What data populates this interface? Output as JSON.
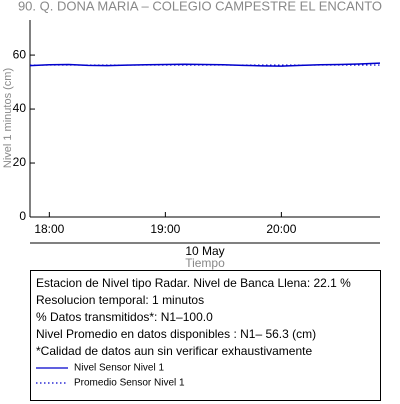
{
  "chart_data": {
    "type": "line",
    "title": "90. Q. DONA MARIA – COLEGIO CAMPESTRE EL ENCANTO",
    "ylabel": "Nivel 1 minutos (cm)",
    "date": "10 May",
    "xlabel": "Tiempo",
    "xlim": [
      1070,
      1251
    ],
    "xticks": [
      {
        "value": 1080,
        "label": "18:00"
      },
      {
        "value": 1140,
        "label": "19:00"
      },
      {
        "value": 1200,
        "label": "20:00"
      }
    ],
    "ylim": [
      0,
      73
    ],
    "yticks": [
      0,
      20,
      40,
      60
    ],
    "series": [
      {
        "name": "Nivel Sensor Nivel 1",
        "color": "#0000cc",
        "style": "solid",
        "x": [
          1070,
          1080,
          1090,
          1100,
          1110,
          1120,
          1130,
          1140,
          1150,
          1160,
          1170,
          1180,
          1190,
          1200,
          1210,
          1220,
          1230,
          1240,
          1251
        ],
        "values": [
          56.1,
          56.4,
          56.5,
          56.2,
          56.1,
          56.3,
          56.4,
          56.5,
          56.6,
          56.5,
          56.4,
          56.2,
          56.0,
          55.9,
          56.2,
          56.4,
          56.5,
          56.7,
          57.0
        ]
      },
      {
        "name": "Promedio Sensor Nivel 1",
        "color": "#0000cc",
        "style": "dotted",
        "x": [
          1070,
          1251
        ],
        "values": [
          56.3,
          56.3
        ]
      }
    ],
    "info_box": {
      "lines": [
        "Estacion de Nivel tipo Radar. Nivel de Banca Llena: 22.1 %",
        "Resolucion temporal: 1 minutos",
        "% Datos transmitidos*: N1–100.0",
        "Nivel Promedio en datos disponibles : N1– 56.3 (cm)",
        "*Calidad de datos aun sin verificar exhaustivamente"
      ]
    }
  }
}
